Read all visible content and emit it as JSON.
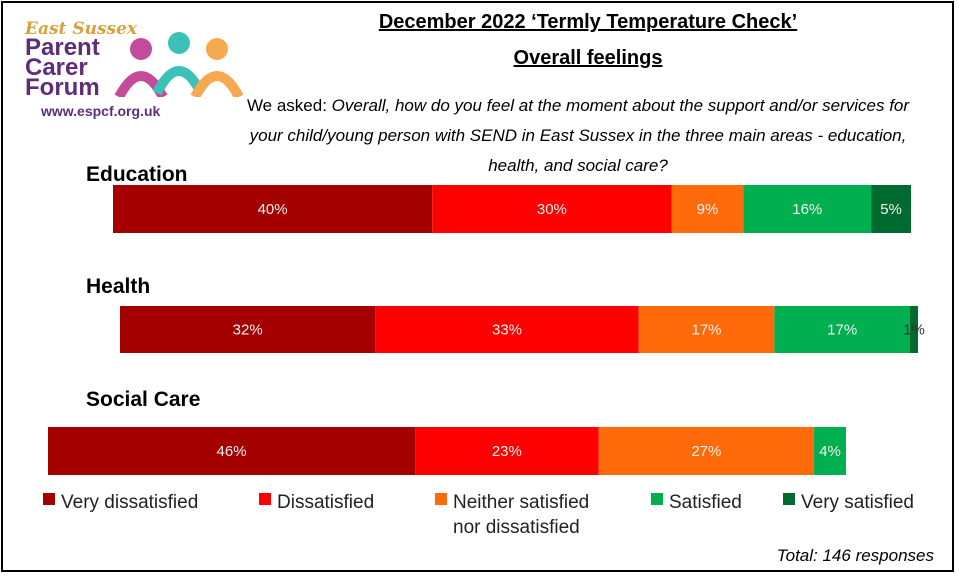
{
  "logo": {
    "line1": "East Sussex",
    "line2": "Parent",
    "line3": "Carer",
    "line4": "Forum",
    "url": "www.espcf.org.uk"
  },
  "header": {
    "title": "December 2022 ‘Termly Temperature Check’",
    "subtitle": "Overall feelings",
    "question_prefix": "We asked: ",
    "question_text": "Overall, how do you feel at the moment about the support and/or services for your child/young person with SEND in East Sussex in the three main areas - education, health, and social care?"
  },
  "footer": {
    "total": "Total: 146 responses"
  },
  "colors": {
    "very_dissatisfied": "#a50000",
    "dissatisfied": "#ff0000",
    "neither": "#ff6a0a",
    "satisfied": "#00b050",
    "very_satisfied": "#006b2e"
  },
  "chart_data": {
    "type": "bar",
    "orientation": "horizontal",
    "stacked": true,
    "categories": [
      "Education",
      "Health",
      "Social Care"
    ],
    "series": [
      {
        "name": "Very dissatisfied",
        "color": "#a50000",
        "values": [
          40,
          32,
          46
        ],
        "labels": [
          "40%",
          "32%",
          "46%"
        ]
      },
      {
        "name": "Dissatisfied",
        "color": "#ff0000",
        "values": [
          30,
          33,
          23
        ],
        "labels": [
          "30%",
          "33%",
          "23%"
        ]
      },
      {
        "name": "Neither satisfied nor dissatisfied",
        "color": "#ff6a0a",
        "values": [
          9,
          17,
          27
        ],
        "labels": [
          "9%",
          "17%",
          "27%"
        ]
      },
      {
        "name": "Satisfied",
        "color": "#00b050",
        "values": [
          16,
          17,
          4
        ],
        "labels": [
          "16%",
          "17%",
          "4%"
        ]
      },
      {
        "name": "Very satisfied",
        "color": "#006b2e",
        "values": [
          5,
          1,
          0
        ],
        "labels": [
          "5%",
          "1%",
          ""
        ]
      }
    ],
    "legend": {
      "placement": "bottom",
      "entries": [
        "Very dissatisfied",
        "Dissatisfied",
        "Neither satisfied nor dissatisfied",
        "Satisfied",
        "Very satisfied"
      ],
      "line1": [
        "Very dissatisfied",
        "Dissatisfied",
        "Neither satisfied",
        "Satisfied",
        "Very satisfied"
      ],
      "line2": [
        "",
        "",
        "nor dissatisfied",
        "",
        ""
      ]
    },
    "grid": false,
    "xlim": [
      0,
      100
    ]
  }
}
